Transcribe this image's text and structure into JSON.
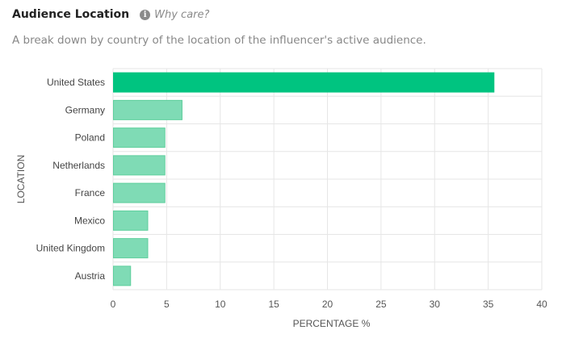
{
  "header": {
    "title": "Audience Location",
    "info_icon": "info-icon",
    "why_care": "Why care?",
    "subtitle": "A break down by country of the location of the influencer's active audience."
  },
  "colors": {
    "top_bar": "#00c480",
    "bar": "#7fdbb5",
    "bar_stroke": "#5fcf9d",
    "grid": "#e6e6e6",
    "axis_text": "#555555"
  },
  "chart_data": {
    "type": "bar",
    "orientation": "horizontal",
    "categories": [
      "United States",
      "Germany",
      "Poland",
      "Netherlands",
      "France",
      "Mexico",
      "United Kingdom",
      "Austria"
    ],
    "values": [
      35.5,
      6.4,
      4.8,
      4.8,
      4.8,
      3.2,
      3.2,
      1.6
    ],
    "xlabel": "PERCENTAGE %",
    "ylabel": "LOCATION",
    "xlim": [
      0,
      40
    ],
    "xticks": [
      0,
      5,
      10,
      15,
      20,
      25,
      30,
      35,
      40
    ],
    "grid": true,
    "highlight_index": 0
  }
}
